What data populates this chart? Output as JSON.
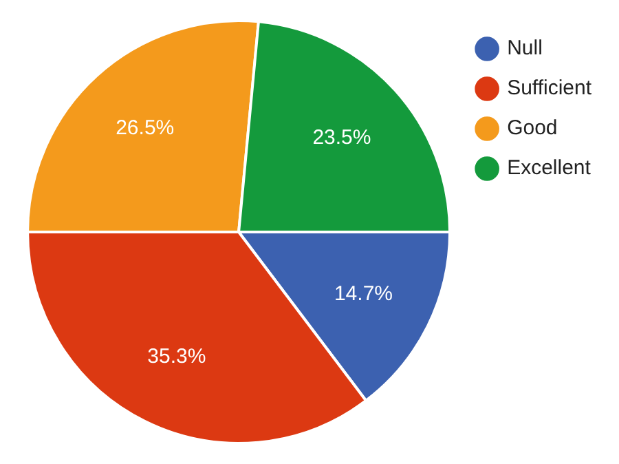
{
  "chart_data": {
    "type": "pie",
    "categories": [
      "Null",
      "Sufficient",
      "Good",
      "Excellent"
    ],
    "values": [
      14.7,
      35.3,
      26.5,
      23.5
    ],
    "value_labels": [
      "14.7%",
      "35.3%",
      "26.5%",
      "23.5%"
    ],
    "colors": [
      "#3c61b0",
      "#dc3912",
      "#f49a1c",
      "#149a3c"
    ],
    "legend": "top right"
  }
}
